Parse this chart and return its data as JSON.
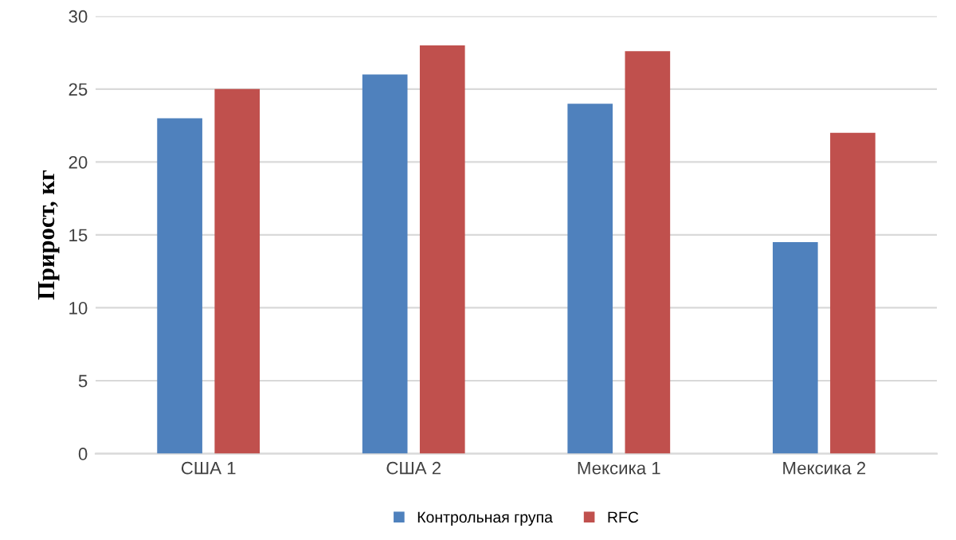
{
  "chart_data": {
    "type": "bar",
    "ylabel": "Прирост, кг",
    "categories": [
      "США 1",
      "США 2",
      "Мексика 1",
      "Мексика 2"
    ],
    "series": [
      {
        "name": "Контрольная група",
        "color": "#4f81bd",
        "values": [
          23,
          26,
          24,
          14.5
        ]
      },
      {
        "name": "RFC",
        "color": "#c0504d",
        "values": [
          25,
          28,
          27.6,
          22
        ]
      }
    ],
    "ylim": [
      0,
      30
    ],
    "yticks": [
      0,
      5,
      10,
      15,
      20,
      25,
      30
    ],
    "grid": "y",
    "legend": "bottom"
  }
}
